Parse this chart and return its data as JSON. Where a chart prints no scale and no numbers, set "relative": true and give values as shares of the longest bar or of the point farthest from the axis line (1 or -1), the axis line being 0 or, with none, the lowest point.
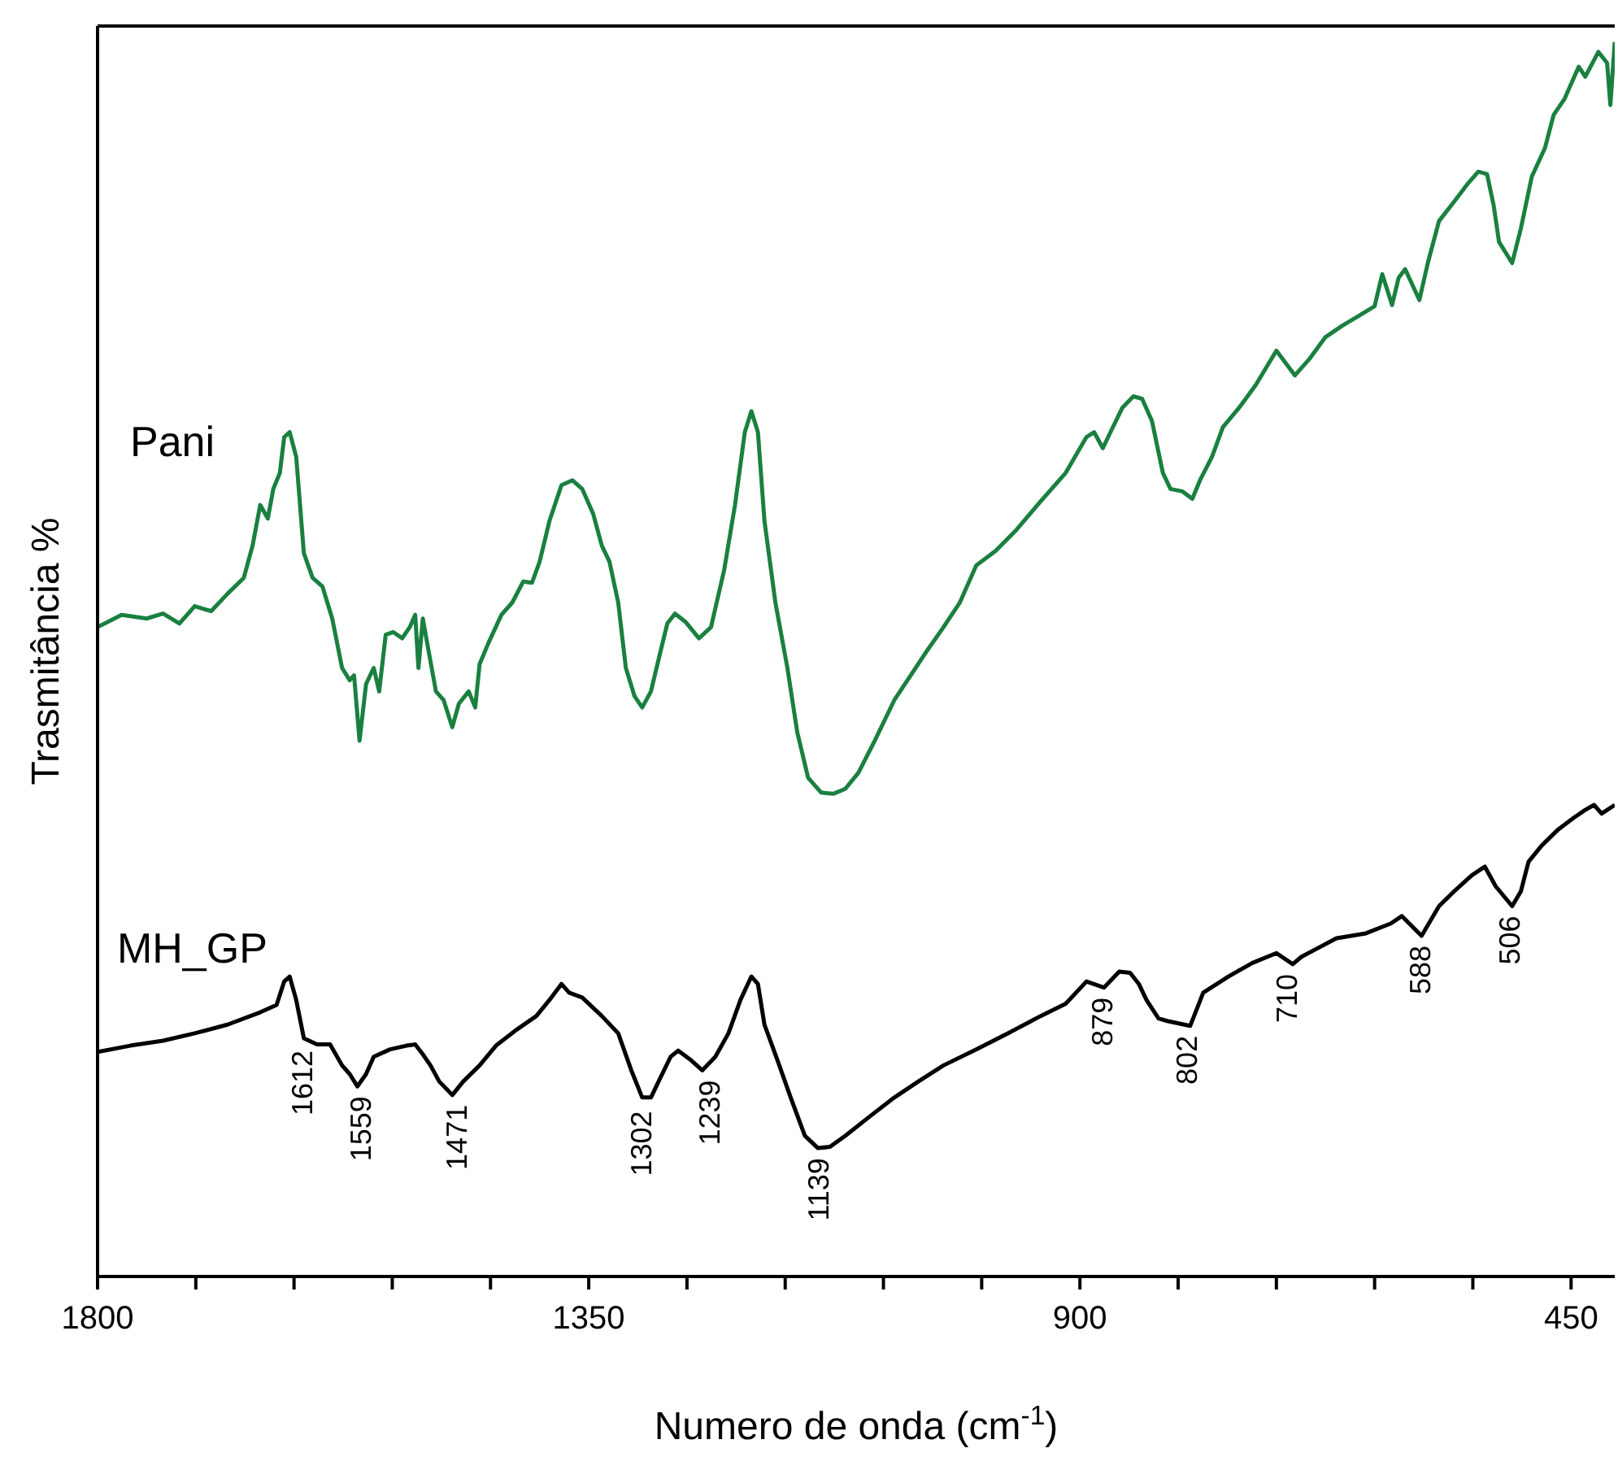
{
  "chart_data": {
    "type": "line",
    "relative": true,
    "xlabel": "Numero de onda (cm$^{-1}$)",
    "ylabel": "Trasmitância %",
    "xlim": [
      1800,
      410
    ],
    "xticks": [
      1800,
      {
        "value": 1710,
        "label": null
      },
      {
        "value": 1620,
        "label": null
      },
      {
        "value": 1530,
        "label": null
      },
      {
        "value": 1440,
        "label": null
      },
      1350,
      {
        "value": 1260,
        "label": null
      },
      {
        "value": 1170,
        "label": null
      },
      {
        "value": 1080,
        "label": null
      },
      {
        "value": 990,
        "label": null
      },
      900,
      {
        "value": 810,
        "label": null
      },
      {
        "value": 720,
        "label": null
      },
      {
        "value": 630,
        "label": null
      },
      {
        "value": 540,
        "label": null
      },
      450
    ],
    "marker": "none",
    "line_style": "solid",
    "series": [
      {
        "name": "Pani",
        "color": "#1a8040",
        "x": [
          1800,
          1778,
          1755,
          1740,
          1725,
          1711,
          1696,
          1681,
          1666,
          1658,
          1651,
          1644,
          1639,
          1633,
          1629,
          1624,
          1618,
          1611,
          1603,
          1594,
          1585,
          1576,
          1569,
          1565,
          1560,
          1554,
          1547,
          1542,
          1536,
          1529,
          1521,
          1514,
          1509,
          1506,
          1502,
          1498,
          1490,
          1483,
          1475,
          1469,
          1460,
          1454,
          1450,
          1442,
          1430,
          1420,
          1410,
          1402,
          1395,
          1386,
          1375,
          1365,
          1356,
          1346,
          1338,
          1331,
          1323,
          1316,
          1308,
          1301,
          1293,
          1286,
          1278,
          1271,
          1261,
          1249,
          1238,
          1226,
          1216,
          1207,
          1201,
          1195,
          1189,
          1179,
          1168,
          1159,
          1149,
          1137,
          1126,
          1115,
          1103,
          1088,
          1070,
          1055,
          1040,
          1025,
          1010,
          995,
          977,
          958,
          936,
          913,
          894,
          887,
          879,
          872,
          861,
          851,
          843,
          834,
          824,
          817,
          806,
          797,
          790,
          779,
          769,
          754,
          739,
          720,
          703,
          690,
          675,
          660,
          645,
          630,
          623,
          614,
          608,
          602,
          589,
          581,
          571,
          556,
          544,
          535,
          527,
          521,
          516,
          504,
          496,
          486,
          474,
          466,
          456,
          443,
          437,
          425,
          417,
          414,
          410
        ],
        "values": [
          0.526,
          0.536,
          0.533,
          0.537,
          0.529,
          0.543,
          0.539,
          0.553,
          0.566,
          0.592,
          0.625,
          0.614,
          0.638,
          0.651,
          0.68,
          0.684,
          0.664,
          0.586,
          0.566,
          0.559,
          0.533,
          0.493,
          0.483,
          0.487,
          0.434,
          0.48,
          0.493,
          0.474,
          0.52,
          0.522,
          0.517,
          0.526,
          0.536,
          0.493,
          0.533,
          0.513,
          0.474,
          0.467,
          0.445,
          0.464,
          0.474,
          0.461,
          0.496,
          0.513,
          0.536,
          0.546,
          0.563,
          0.562,
          0.579,
          0.612,
          0.641,
          0.645,
          0.638,
          0.618,
          0.592,
          0.579,
          0.546,
          0.493,
          0.47,
          0.461,
          0.474,
          0.5,
          0.529,
          0.537,
          0.53,
          0.517,
          0.526,
          0.572,
          0.625,
          0.684,
          0.701,
          0.684,
          0.612,
          0.546,
          0.493,
          0.441,
          0.404,
          0.392,
          0.391,
          0.395,
          0.408,
          0.434,
          0.467,
          0.487,
          0.507,
          0.526,
          0.546,
          0.576,
          0.588,
          0.605,
          0.628,
          0.651,
          0.68,
          0.684,
          0.671,
          0.684,
          0.704,
          0.713,
          0.711,
          0.693,
          0.651,
          0.638,
          0.636,
          0.63,
          0.645,
          0.664,
          0.688,
          0.704,
          0.722,
          0.75,
          0.73,
          0.743,
          0.761,
          0.77,
          0.778,
          0.786,
          0.812,
          0.787,
          0.809,
          0.816,
          0.791,
          0.822,
          0.855,
          0.872,
          0.886,
          0.895,
          0.893,
          0.868,
          0.838,
          0.821,
          0.849,
          0.891,
          0.914,
          0.941,
          0.954,
          0.98,
          0.972,
          0.992,
          0.983,
          0.949,
          1
        ]
      },
      {
        "name": "MH_GP",
        "color": "#000000",
        "x": [
          1800,
          1770,
          1740,
          1711,
          1681,
          1651,
          1636,
          1629,
          1624,
          1618,
          1611,
          1599,
          1587,
          1576,
          1569,
          1562,
          1554,
          1547,
          1532,
          1517,
          1509,
          1502,
          1495,
          1487,
          1475,
          1465,
          1450,
          1435,
          1416,
          1398,
          1386,
          1375,
          1368,
          1356,
          1338,
          1323,
          1311,
          1301,
          1293,
          1286,
          1275,
          1268,
          1256,
          1246,
          1234,
          1222,
          1211,
          1201,
          1195,
          1189,
          1177,
          1165,
          1152,
          1140,
          1129,
          1115,
          1092,
          1070,
          1048,
          1025,
          995,
          966,
          936,
          913,
          894,
          878,
          864,
          854,
          846,
          839,
          828,
          820,
          799,
          787,
          764,
          742,
          720,
          705,
          697,
          682,
          665,
          638,
          615,
          605,
          587,
          571,
          556,
          541,
          529,
          519,
          504,
          496,
          489,
          477,
          462,
          447,
          437,
          429,
          422,
          410
        ],
        "values": [
          0.182,
          0.187,
          0.191,
          0.197,
          0.204,
          0.214,
          0.22,
          0.239,
          0.243,
          0.224,
          0.193,
          0.188,
          0.188,
          0.171,
          0.164,
          0.154,
          0.164,
          0.178,
          0.184,
          0.187,
          0.188,
          0.18,
          0.171,
          0.158,
          0.147,
          0.158,
          0.171,
          0.187,
          0.2,
          0.211,
          0.224,
          0.237,
          0.23,
          0.226,
          0.211,
          0.197,
          0.167,
          0.145,
          0.145,
          0.158,
          0.178,
          0.183,
          0.175,
          0.167,
          0.178,
          0.197,
          0.224,
          0.243,
          0.237,
          0.204,
          0.175,
          0.145,
          0.114,
          0.104,
          0.105,
          0.114,
          0.13,
          0.145,
          0.158,
          0.171,
          0.184,
          0.197,
          0.211,
          0.221,
          0.239,
          0.234,
          0.247,
          0.246,
          0.237,
          0.224,
          0.209,
          0.207,
          0.203,
          0.23,
          0.243,
          0.254,
          0.262,
          0.253,
          0.259,
          0.266,
          0.274,
          0.278,
          0.286,
          0.292,
          0.276,
          0.3,
          0.313,
          0.325,
          0.332,
          0.316,
          0.3,
          0.312,
          0.336,
          0.349,
          0.362,
          0.372,
          0.378,
          0.382,
          0.375,
          0.382
        ]
      }
    ],
    "annotations": [
      {
        "text": "1612",
        "x": 1612,
        "y": 0.191
      },
      {
        "text": "1559",
        "x": 1559,
        "y": 0.154
      },
      {
        "text": "1471",
        "x": 1471,
        "y": 0.147
      },
      {
        "text": "1302",
        "x": 1302,
        "y": 0.142
      },
      {
        "text": "1239",
        "x": 1239,
        "y": 0.167
      },
      {
        "text": "1139",
        "x": 1139,
        "y": 0.104
      },
      {
        "text": "879",
        "x": 879,
        "y": 0.234
      },
      {
        "text": "802",
        "x": 802,
        "y": 0.203
      },
      {
        "text": "710",
        "x": 710,
        "y": 0.253
      },
      {
        "text": "588",
        "x": 588,
        "y": 0.276
      },
      {
        "text": "506",
        "x": 506,
        "y": 0.3
      }
    ]
  }
}
